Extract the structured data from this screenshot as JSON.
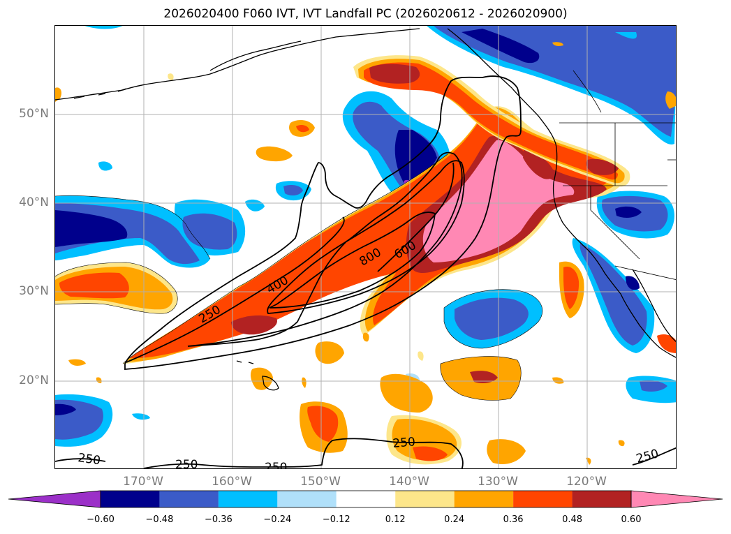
{
  "title": "2026020400 F060 IVT, IVT Landfall PC (2026020612 - 2026020900)",
  "axes": {
    "lat_labels": [
      "50°N",
      "40°N",
      "30°N",
      "20°N"
    ],
    "lon_labels": [
      "170°W",
      "160°W",
      "150°W",
      "140°W",
      "130°W",
      "120°W"
    ]
  },
  "colors": {
    "purple": "#9b30c8",
    "navy": "#00008c",
    "royal": "#3b5bc8",
    "cyan": "#00bfff",
    "lightblue": "#b0e0fa",
    "white": "#ffffff",
    "paleyellow": "#fde68a",
    "orange": "#ffa500",
    "redorange": "#ff4500",
    "firebrick": "#b22222",
    "pink": "#ff88b4"
  },
  "colorbar": {
    "ticks": [
      "−0.60",
      "−0.48",
      "−0.36",
      "−0.24",
      "−0.12",
      "0.12",
      "0.24",
      "0.36",
      "0.48",
      "0.60"
    ],
    "bins": [
      "purple",
      "navy",
      "royal",
      "cyan",
      "lightblue",
      "white",
      "paleyellow",
      "orange",
      "redorange",
      "firebrick",
      "pink"
    ]
  },
  "contour_labels": [
    "250",
    "400",
    "600",
    "800",
    "250",
    "250",
    "250",
    "250",
    "250"
  ]
}
